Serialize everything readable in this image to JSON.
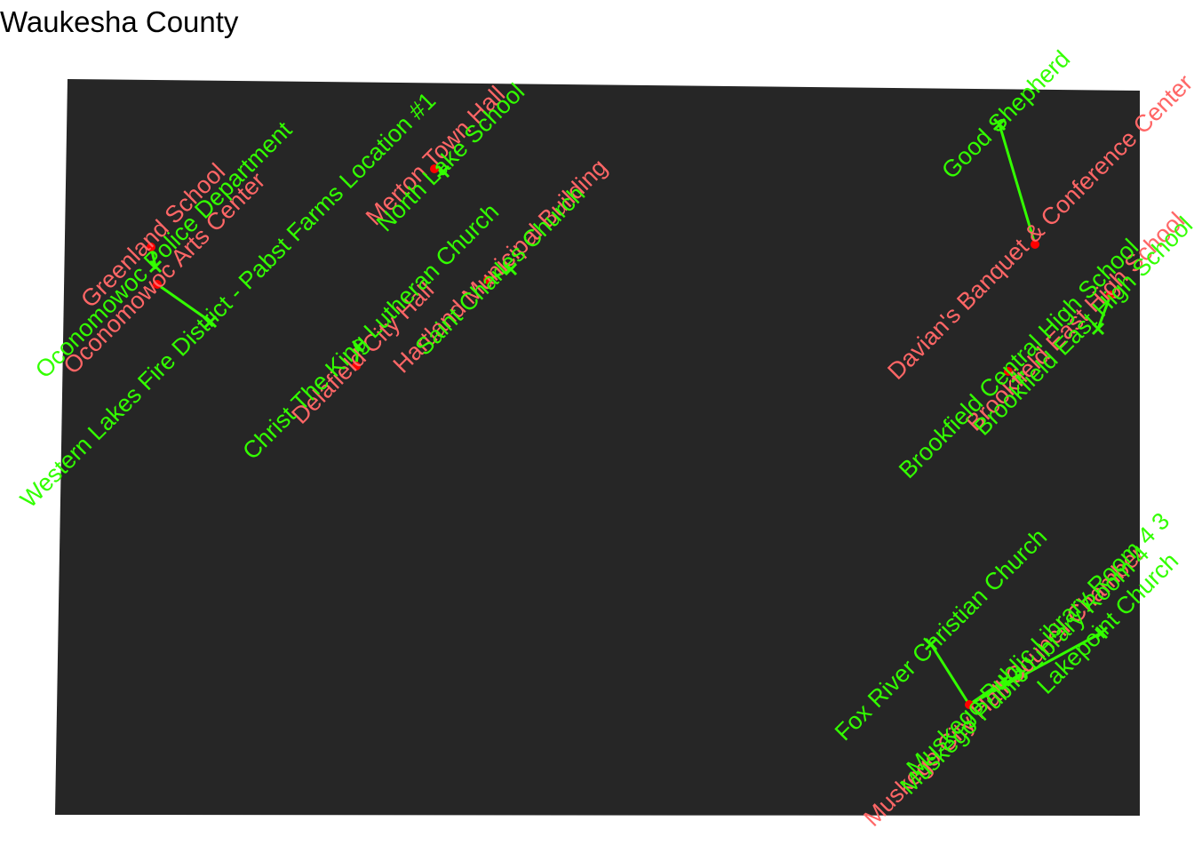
{
  "title": "Waukesha County",
  "colors": {
    "county_fill": "#262626",
    "polling_place": "#ff0000",
    "polling_label": "#ff6666",
    "dropbox": "#33ff00",
    "connector": "#33ff00",
    "background": "#ffffff"
  },
  "legend_note": "",
  "polling_places": [
    {
      "name": "Greenland School"
    },
    {
      "name": "Oconomowoc Arts Center"
    },
    {
      "name": "Merton Town Hall"
    },
    {
      "name": "Delafield City Hall"
    },
    {
      "name": "Hartland Municipal Building"
    },
    {
      "name": "Davian's Banquet & Conference Center"
    },
    {
      "name": "Brookfield East High School"
    },
    {
      "name": "Muskego City Hall Council Chamber"
    }
  ],
  "drop_boxes": [
    {
      "name": "Oconomowoc Police Department"
    },
    {
      "name": "Western Lakes Fire District - Pabst Farms Location #1"
    },
    {
      "name": "North Lake School"
    },
    {
      "name": "Christ The King Lutheran Church"
    },
    {
      "name": "Saint Charles Church"
    },
    {
      "name": "Good Shepherd"
    },
    {
      "name": "Brookfield Central High School"
    },
    {
      "name": "Brookfield East High School"
    },
    {
      "name": "Fox River Christian Church"
    },
    {
      "name": "Muskego Public Library Room 4"
    },
    {
      "name": "Muskego Public Library Room 4 3"
    },
    {
      "name": "Lakepoint Church"
    }
  ]
}
